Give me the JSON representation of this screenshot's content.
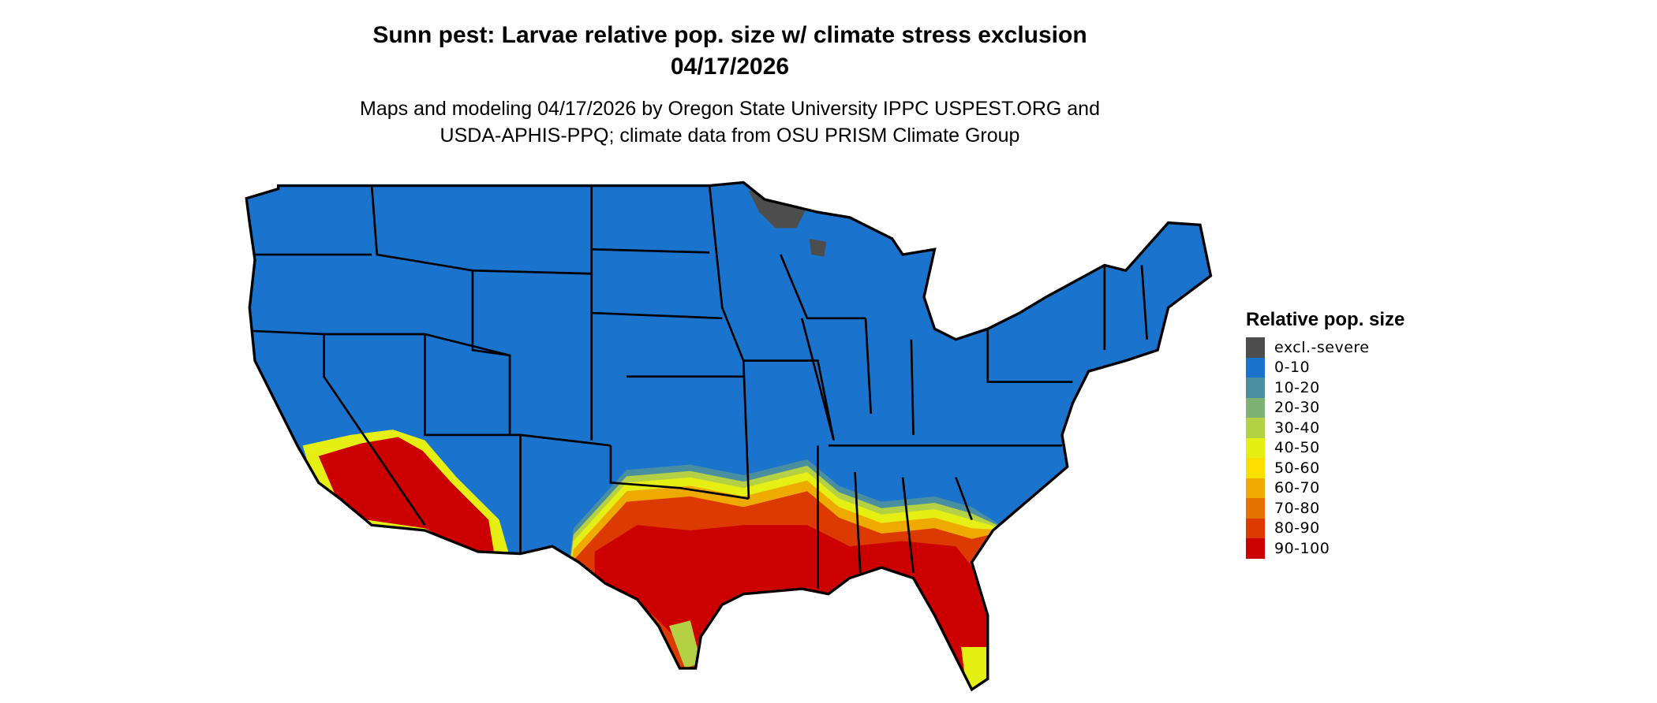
{
  "title_line1": "Sunn pest: Larvae relative pop. size w/ climate stress exclusion",
  "title_line2": "04/17/2026",
  "subtitle_line1": "Maps and modeling 04/17/2026 by Oregon State University IPPC USPEST.ORG and",
  "subtitle_line2": "USDA-APHIS-PPQ; climate data from OSU PRISM Climate Group",
  "map": {
    "region": "Contiguous United States",
    "base_color": "#1a73cc",
    "border_color": "#000000"
  },
  "legend": {
    "title": "Relative pop. size",
    "items": [
      {
        "label": "excl.-severe",
        "color": "#4d4d4d"
      },
      {
        "label": "0-10",
        "color": "#1a73cc"
      },
      {
        "label": "10-20",
        "color": "#4a8f9f"
      },
      {
        "label": "20-30",
        "color": "#7fb074"
      },
      {
        "label": "30-40",
        "color": "#b4d044"
      },
      {
        "label": "40-50",
        "color": "#e6ef14"
      },
      {
        "label": "50-60",
        "color": "#f9e000"
      },
      {
        "label": "60-70",
        "color": "#efaa00"
      },
      {
        "label": "70-80",
        "color": "#e47200"
      },
      {
        "label": "80-90",
        "color": "#dc3a00"
      },
      {
        "label": "90-100",
        "color": "#cc0000"
      }
    ]
  }
}
